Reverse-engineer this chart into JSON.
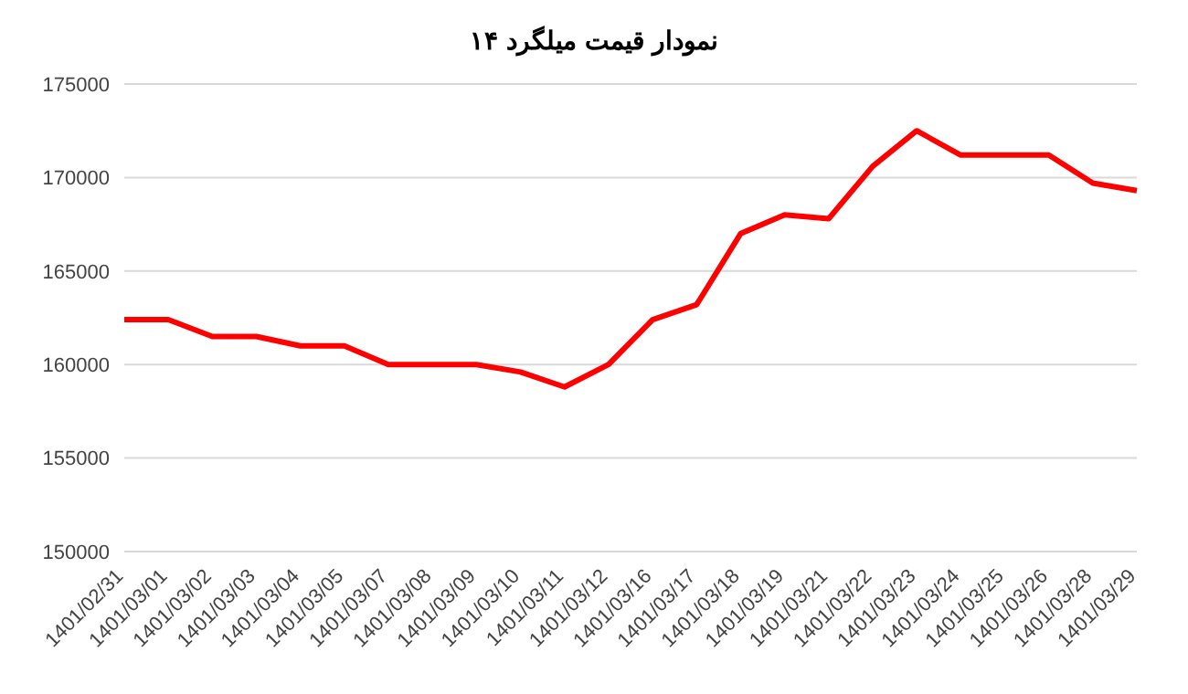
{
  "chart_data": {
    "type": "line",
    "title": "نمودار قیمت میلگرد ۱۴",
    "categories": [
      "1401/02/31",
      "1401/03/01",
      "1401/03/02",
      "1401/03/03",
      "1401/03/04",
      "1401/03/05",
      "1401/03/07",
      "1401/03/08",
      "1401/03/09",
      "1401/03/10",
      "1401/03/11",
      "1401/03/12",
      "1401/03/16",
      "1401/03/17",
      "1401/03/18",
      "1401/03/19",
      "1401/03/21",
      "1401/03/22",
      "1401/03/23",
      "1401/03/24",
      "1401/03/25",
      "1401/03/26",
      "1401/03/28",
      "1401/03/29"
    ],
    "series": [
      {
        "color": "#ff0000",
        "values": [
          162400,
          162400,
          161500,
          161500,
          161000,
          161000,
          160000,
          160000,
          160000,
          159600,
          158800,
          160000,
          162400,
          163200,
          167000,
          168000,
          167800,
          170600,
          172500,
          171200,
          171200,
          171200,
          169700,
          169300
        ]
      }
    ],
    "ylim": [
      150000,
      175000
    ],
    "yticks": [
      150000,
      155000,
      160000,
      165000,
      170000,
      175000
    ],
    "grid": "y",
    "marker": "none",
    "line_style": "solid"
  }
}
